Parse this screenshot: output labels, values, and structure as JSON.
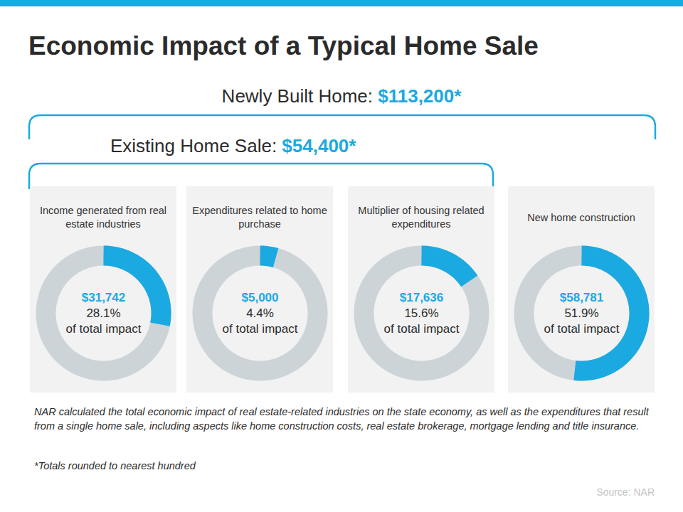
{
  "title": "Economic Impact of a Typical Home Sale",
  "brackets": [
    {
      "label": "Newly Built Home:",
      "total": "$113,200*"
    },
    {
      "label": "Existing Home Sale:",
      "total": "$54,400*"
    }
  ],
  "chart_data": [
    {
      "type": "donut",
      "title": "Income generated from real estate industries",
      "amount": "$31,742",
      "values": [
        28.1
      ],
      "value_labels": [
        "28.1%"
      ],
      "caption": "of total impact",
      "total": 100,
      "color": "#1ba9e1",
      "data_labels": true
    },
    {
      "type": "donut",
      "title": "Expenditures related to home purchase",
      "amount": "$5,000",
      "values": [
        4.4
      ],
      "value_labels": [
        "4.4%"
      ],
      "caption": "of total impact",
      "total": 100,
      "color": "#1ba9e1",
      "data_labels": true
    },
    {
      "type": "donut",
      "title": "Multiplier of housing related expenditures",
      "amount": "$17,636",
      "values": [
        15.6
      ],
      "value_labels": [
        "15.6%"
      ],
      "caption": "of total impact",
      "total": 100,
      "color": "#1ba9e1",
      "data_labels": true
    },
    {
      "type": "donut",
      "title": "New home construction",
      "amount": "$58,781",
      "values": [
        51.9
      ],
      "value_labels": [
        "51.9%"
      ],
      "caption": "of total impact",
      "total": 100,
      "color": "#1ba9e1",
      "data_labels": true
    }
  ],
  "note": "NAR calculated the total economic impact of real estate-related industries on the state economy, as well as the expenditures that result from a single home sale, including aspects like home construction costs, real estate brokerage, mortgage lending and title insurance.",
  "footnote": "*Totals rounded to nearest hundred",
  "source": "Source: NAR"
}
